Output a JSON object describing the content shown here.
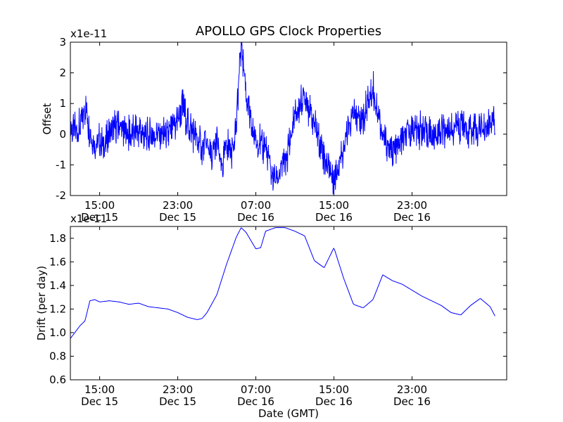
{
  "chart_data": [
    {
      "type": "line",
      "title": "APOLLO GPS Clock Properties",
      "ylabel": "Offset",
      "y_multiplier": "x1e-11",
      "ylim": [
        -2,
        3
      ],
      "yticks": [
        -2,
        -1,
        0,
        1,
        2,
        3
      ],
      "xticks": [
        {
          "time": "15:00",
          "date": "Dec 15"
        },
        {
          "time": "23:00",
          "date": "Dec 15"
        },
        {
          "time": "07:00",
          "date": "Dec 16"
        },
        {
          "time": "15:00",
          "date": "Dec 16"
        },
        {
          "time": "23:00",
          "date": "Dec 16"
        }
      ],
      "color": "#0000ff",
      "series": [
        {
          "x": [
            0,
            1,
            1.5,
            2,
            2.5,
            3,
            3.5,
            4,
            5,
            6,
            7,
            8,
            9,
            10,
            10.5,
            11,
            11.5,
            12,
            12.5,
            13,
            13.5,
            14,
            14.5,
            15,
            15.5,
            16,
            16.5,
            17,
            17.5,
            18,
            18.5,
            19,
            19.5,
            20,
            20.5,
            21,
            22,
            23,
            24,
            25,
            26,
            27,
            28,
            29,
            30,
            31,
            32,
            33,
            34,
            35,
            36,
            37,
            38,
            39,
            40,
            41,
            42,
            43.5
          ],
          "y": [
            0.1,
            0.3,
            0.9,
            0.1,
            -0.4,
            -0.2,
            -0.5,
            0.1,
            0.2,
            0.0,
            0.1,
            -0.1,
            0.0,
            0.0,
            0.2,
            0.5,
            0.9,
            0.4,
            0.1,
            -0.2,
            -0.5,
            -0.3,
            -0.9,
            -0.2,
            -1.2,
            -0.3,
            -0.6,
            0.4,
            3.0,
            1.4,
            0.3,
            -0.2,
            -0.3,
            -0.4,
            -1.2,
            -1.5,
            -0.9,
            0.5,
            1.3,
            0.3,
            -0.7,
            -1.4,
            -0.4,
            0.6,
            0.5,
            1.5,
            -0.1,
            -0.6,
            -0.2,
            0.2,
            0.1,
            0.0,
            0.1,
            0.2,
            0.3,
            0.2,
            0.1,
            0.3
          ]
        }
      ]
    },
    {
      "type": "line",
      "ylabel": "Drift (per day)",
      "xlabel": "Date (GMT)",
      "y_multiplier": "x1e-11",
      "ylim": [
        0.6,
        1.9
      ],
      "yticks": [
        0.6,
        0.8,
        1.0,
        1.2,
        1.4,
        1.6,
        1.8
      ],
      "xticks": [
        {
          "time": "15:00",
          "date": "Dec 15"
        },
        {
          "time": "23:00",
          "date": "Dec 15"
        },
        {
          "time": "07:00",
          "date": "Dec 16"
        },
        {
          "time": "15:00",
          "date": "Dec 16"
        },
        {
          "time": "23:00",
          "date": "Dec 16"
        }
      ],
      "color": "#0000ff",
      "series": [
        {
          "x": [
            0,
            1,
            1.5,
            2,
            2.5,
            3,
            4,
            5,
            6,
            7,
            8,
            9,
            10,
            11,
            12,
            13,
            13.5,
            14,
            15,
            16,
            17,
            17.5,
            18,
            19,
            19.5,
            20,
            21,
            22,
            23,
            24,
            25,
            26,
            27,
            28,
            29,
            30,
            31,
            32,
            33,
            34,
            35,
            36,
            37,
            38,
            39,
            40,
            41,
            42,
            43,
            43.5
          ],
          "y": [
            0.95,
            1.06,
            1.1,
            1.27,
            1.28,
            1.26,
            1.27,
            1.26,
            1.24,
            1.25,
            1.22,
            1.21,
            1.2,
            1.17,
            1.13,
            1.11,
            1.12,
            1.17,
            1.32,
            1.58,
            1.81,
            1.89,
            1.85,
            1.71,
            1.72,
            1.86,
            1.89,
            1.89,
            1.86,
            1.82,
            1.61,
            1.55,
            1.72,
            1.46,
            1.24,
            1.21,
            1.28,
            1.49,
            1.44,
            1.41,
            1.36,
            1.31,
            1.27,
            1.23,
            1.17,
            1.15,
            1.23,
            1.29,
            1.22,
            1.14
          ],
          "_note": ""
        }
      ]
    }
  ]
}
